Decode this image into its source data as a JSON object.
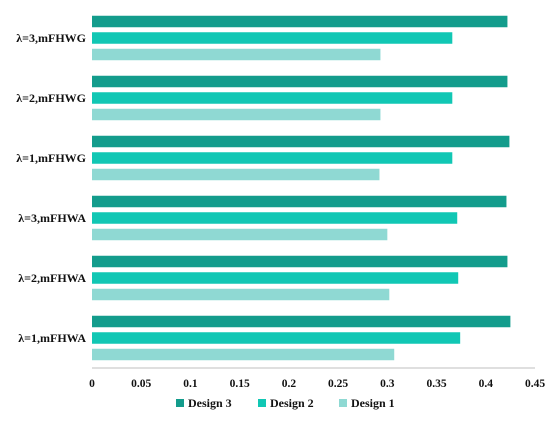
{
  "chart_data": {
    "type": "bar",
    "orientation": "horizontal",
    "title": "",
    "xlabel": "",
    "ylabel": "",
    "categories": [
      "λ=3,mFHWG",
      "λ=2,mFHWG",
      "λ=1,mFHWG",
      "λ=3,mFHWA",
      "λ=2,mFHWA",
      "λ=1,mFHWA"
    ],
    "series": [
      {
        "name": "Design 3",
        "color": "#139c8c",
        "values": [
          0.422,
          0.422,
          0.424,
          0.421,
          0.422,
          0.425
        ]
      },
      {
        "name": "Design 2",
        "color": "#11c7b4",
        "values": [
          0.366,
          0.366,
          0.366,
          0.371,
          0.372,
          0.374
        ]
      },
      {
        "name": "Design 1",
        "color": "#8fd9d3",
        "values": [
          0.293,
          0.293,
          0.292,
          0.3,
          0.302,
          0.307
        ]
      }
    ],
    "xlim": [
      0,
      0.45
    ],
    "xticks": [
      "0",
      "0.05",
      "0.1",
      "0.15",
      "0.2",
      "0.25",
      "0.3",
      "0.35",
      "0.4",
      "0.45"
    ],
    "grid": false,
    "legend": {
      "position": "bottom",
      "order": [
        "Design 3",
        "Design 2",
        "Design 1"
      ]
    }
  }
}
